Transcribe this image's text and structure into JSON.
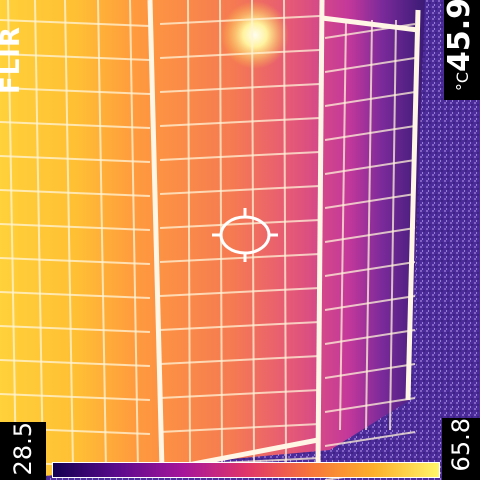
{
  "brand": "FLIR",
  "spot_temperature": {
    "value": "45.9",
    "unit": "°C"
  },
  "scale": {
    "min": "28.5",
    "max": "65.8"
  },
  "palette_colors": [
    "#120050",
    "#5b0a8c",
    "#a4159a",
    "#e0356a",
    "#f7753a",
    "#fdb02b",
    "#fff56a"
  ],
  "icons": {
    "crosshair": "spot-meter-crosshair-icon"
  }
}
